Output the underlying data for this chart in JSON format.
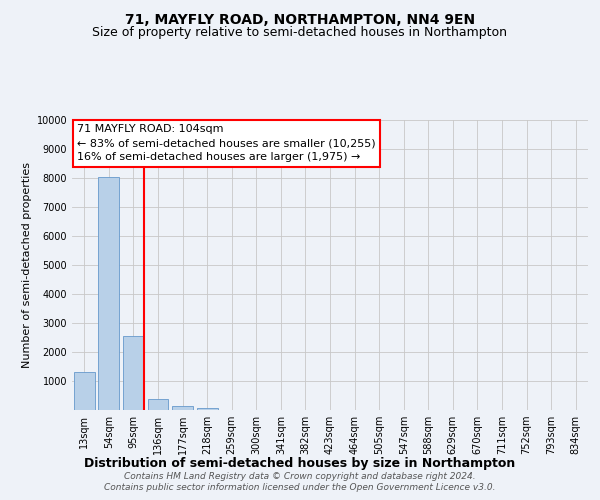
{
  "title": "71, MAYFLY ROAD, NORTHAMPTON, NN4 9EN",
  "subtitle": "Size of property relative to semi-detached houses in Northampton",
  "xlabel": "Distribution of semi-detached houses by size in Northampton",
  "ylabel": "Number of semi-detached properties",
  "footer_line1": "Contains HM Land Registry data © Crown copyright and database right 2024.",
  "footer_line2": "Contains public sector information licensed under the Open Government Licence v3.0.",
  "annotation_line1": "71 MAYFLY ROAD: 104sqm",
  "annotation_line2": "← 83% of semi-detached houses are smaller (10,255)",
  "annotation_line3": "16% of semi-detached houses are larger (1,975) →",
  "bar_labels": [
    "13sqm",
    "54sqm",
    "95sqm",
    "136sqm",
    "177sqm",
    "218sqm",
    "259sqm",
    "300sqm",
    "341sqm",
    "382sqm",
    "423sqm",
    "464sqm",
    "505sqm",
    "547sqm",
    "588sqm",
    "629sqm",
    "670sqm",
    "711sqm",
    "752sqm",
    "793sqm",
    "834sqm"
  ],
  "bar_values": [
    1300,
    8050,
    2550,
    370,
    130,
    80,
    0,
    0,
    0,
    0,
    0,
    0,
    0,
    0,
    0,
    0,
    0,
    0,
    0,
    0,
    0
  ],
  "bar_color": "#b8d0e8",
  "bar_edge_color": "#6699cc",
  "red_line_bar_index": 2,
  "ylim": [
    0,
    10000
  ],
  "yticks": [
    0,
    1000,
    2000,
    3000,
    4000,
    5000,
    6000,
    7000,
    8000,
    9000,
    10000
  ],
  "background_color": "#eef2f8",
  "plot_bg_color": "#eef2f8",
  "grid_color": "#c8c8c8",
  "title_fontsize": 10,
  "subtitle_fontsize": 9,
  "ylabel_fontsize": 8,
  "xlabel_fontsize": 9,
  "tick_fontsize": 7,
  "footer_fontsize": 6.5,
  "annotation_fontsize": 8
}
